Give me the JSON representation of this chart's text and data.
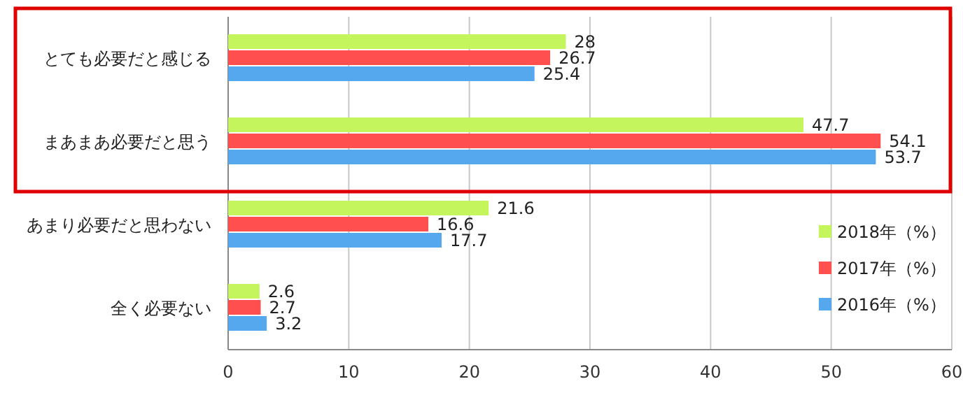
{
  "chart_data": {
    "type": "bar",
    "orientation": "horizontal",
    "categories": [
      "とても必要だと感じる",
      "まあまあ必要だと思う",
      "あまり必要だと思わない",
      "全く必要ない"
    ],
    "series": [
      {
        "name": "2018年（%）",
        "color": "#c4f55c",
        "values": [
          28,
          47.7,
          21.6,
          2.6
        ]
      },
      {
        "name": "2017年（%）",
        "color": "#ff4f4f",
        "values": [
          26.7,
          54.1,
          16.6,
          2.7
        ]
      },
      {
        "name": "2016年（%）",
        "color": "#55a8ee",
        "values": [
          25.4,
          53.7,
          17.7,
          3.2
        ]
      }
    ],
    "xlim": [
      0,
      60
    ],
    "xticks": [
      0,
      10,
      20,
      30,
      40,
      50,
      60
    ],
    "grid": "x",
    "legend": "right",
    "data_labels": true
  }
}
